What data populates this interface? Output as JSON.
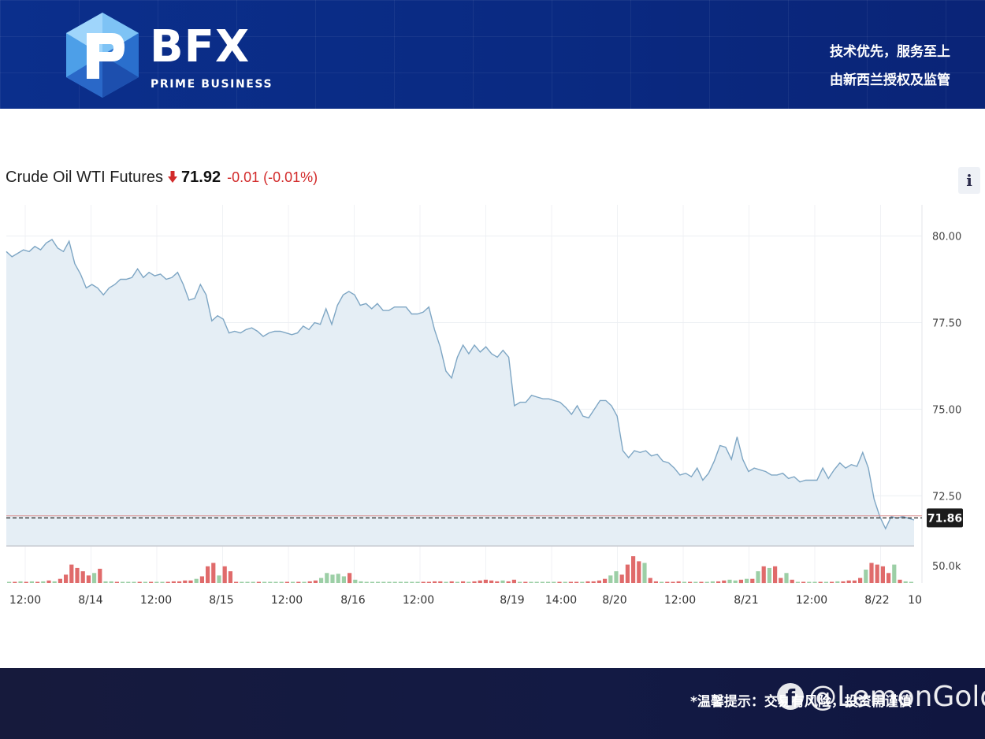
{
  "header": {
    "brand": "BFX",
    "brand_tagline": "PRIME BUSINESS",
    "slogan_line1": "技术优先，服务至上",
    "slogan_line2": "由新西兰授权及监管"
  },
  "quote": {
    "symbol_name": "Crude Oil WTI Futures",
    "direction_icon": "down-arrow-icon",
    "price": "71.92",
    "change": "-0.01 (-0.01%)",
    "change_color": "#d22a2a",
    "info_label": "i"
  },
  "chart_data": {
    "type": "area",
    "title": "",
    "xlabel": "",
    "ylabel": "",
    "ylim": [
      71.05,
      80.9
    ],
    "y_ticks": [
      "80.00",
      "77.50",
      "75.00",
      "72.50"
    ],
    "volume_tick": "50.0k",
    "last_value_label": "71.86",
    "last_value": 71.86,
    "reference_value": 71.92,
    "x_tick_labels": [
      "12:00",
      "8/14",
      "12:00",
      "8/15",
      "12:00",
      "8/16",
      "12:00",
      "8/19",
      "14:00",
      "8/20",
      "12:00",
      "8/21",
      "12:00",
      "8/22",
      "10"
    ],
    "grid": true,
    "line_color": "#7ea6c4",
    "area_color": "#e5eef5",
    "price_series": [
      79.55,
      79.4,
      79.5,
      79.6,
      79.55,
      79.7,
      79.6,
      79.8,
      79.9,
      79.65,
      79.55,
      79.85,
      79.2,
      78.9,
      78.5,
      78.6,
      78.5,
      78.3,
      78.5,
      78.6,
      78.75,
      78.75,
      78.8,
      79.05,
      78.8,
      78.95,
      78.85,
      78.9,
      78.75,
      78.8,
      78.95,
      78.6,
      78.15,
      78.2,
      78.6,
      78.3,
      77.55,
      77.7,
      77.6,
      77.2,
      77.25,
      77.2,
      77.3,
      77.35,
      77.25,
      77.1,
      77.2,
      77.25,
      77.25,
      77.2,
      77.15,
      77.2,
      77.4,
      77.3,
      77.5,
      77.45,
      77.9,
      77.45,
      78.0,
      78.3,
      78.4,
      78.3,
      78.0,
      78.05,
      77.9,
      78.05,
      77.85,
      77.85,
      77.95,
      77.95,
      77.95,
      77.75,
      77.75,
      77.8,
      77.95,
      77.3,
      76.8,
      76.1,
      75.9,
      76.5,
      76.85,
      76.6,
      76.85,
      76.65,
      76.8,
      76.6,
      76.5,
      76.7,
      76.5,
      75.1,
      75.2,
      75.2,
      75.4,
      75.35,
      75.3,
      75.3,
      75.25,
      75.2,
      75.05,
      74.85,
      75.1,
      74.8,
      74.75,
      75.0,
      75.25,
      75.25,
      75.1,
      74.8,
      73.8,
      73.6,
      73.8,
      73.75,
      73.8,
      73.65,
      73.7,
      73.5,
      73.45,
      73.3,
      73.1,
      73.15,
      73.05,
      73.3,
      72.95,
      73.15,
      73.5,
      73.95,
      73.9,
      73.55,
      74.2,
      73.55,
      73.2,
      73.3,
      73.25,
      73.2,
      73.1,
      73.1,
      73.15,
      73.0,
      73.05,
      72.9,
      72.95,
      72.95,
      72.95,
      73.3,
      73.0,
      73.25,
      73.45,
      73.3,
      73.4,
      73.35,
      73.75,
      73.3,
      72.4,
      71.9,
      71.55,
      71.9,
      71.85,
      71.9,
      71.85,
      71.8
    ],
    "volume_series": [
      {
        "v": 1,
        "c": "g"
      },
      {
        "v": 1,
        "c": "r"
      },
      {
        "v": 2,
        "c": "g"
      },
      {
        "v": 1,
        "c": "r"
      },
      {
        "v": 2,
        "c": "g"
      },
      {
        "v": 1,
        "c": "r"
      },
      {
        "v": 2,
        "c": "g"
      },
      {
        "v": 3,
        "c": "r"
      },
      {
        "v": 2,
        "c": "g"
      },
      {
        "v": 5,
        "c": "r"
      },
      {
        "v": 10,
        "c": "r"
      },
      {
        "v": 22,
        "c": "r"
      },
      {
        "v": 18,
        "c": "r"
      },
      {
        "v": 14,
        "c": "r"
      },
      {
        "v": 9,
        "c": "r"
      },
      {
        "v": 12,
        "c": "g"
      },
      {
        "v": 17,
        "c": "r"
      },
      {
        "v": 2,
        "c": "g"
      },
      {
        "v": 2,
        "c": "g"
      },
      {
        "v": 1,
        "c": "r"
      },
      {
        "v": 0,
        "c": "g"
      },
      {
        "v": 0,
        "c": "g"
      },
      {
        "v": 0,
        "c": "g"
      },
      {
        "v": 1,
        "c": "r"
      },
      {
        "v": 1,
        "c": "g"
      },
      {
        "v": 1,
        "c": "r"
      },
      {
        "v": 0,
        "c": "g"
      },
      {
        "v": 1,
        "c": "g"
      },
      {
        "v": 1,
        "c": "r"
      },
      {
        "v": 2,
        "c": "r"
      },
      {
        "v": 2,
        "c": "r"
      },
      {
        "v": 3,
        "c": "r"
      },
      {
        "v": 3,
        "c": "r"
      },
      {
        "v": 5,
        "c": "g"
      },
      {
        "v": 8,
        "c": "r"
      },
      {
        "v": 20,
        "c": "r"
      },
      {
        "v": 24,
        "c": "r"
      },
      {
        "v": 9,
        "c": "g"
      },
      {
        "v": 20,
        "c": "r"
      },
      {
        "v": 14,
        "c": "r"
      },
      {
        "v": 1,
        "c": "r"
      },
      {
        "v": 0,
        "c": "g"
      },
      {
        "v": 0,
        "c": "g"
      },
      {
        "v": 0,
        "c": "g"
      },
      {
        "v": 1,
        "c": "r"
      },
      {
        "v": 0,
        "c": "g"
      },
      {
        "v": 0,
        "c": "g"
      },
      {
        "v": 0,
        "c": "g"
      },
      {
        "v": 0,
        "c": "g"
      },
      {
        "v": 1,
        "c": "r"
      },
      {
        "v": 1,
        "c": "g"
      },
      {
        "v": 1,
        "c": "r"
      },
      {
        "v": 1,
        "c": "g"
      },
      {
        "v": 2,
        "c": "r"
      },
      {
        "v": 3,
        "c": "r"
      },
      {
        "v": 6,
        "c": "g"
      },
      {
        "v": 12,
        "c": "g"
      },
      {
        "v": 10,
        "c": "g"
      },
      {
        "v": 11,
        "c": "g"
      },
      {
        "v": 8,
        "c": "g"
      },
      {
        "v": 12,
        "c": "r"
      },
      {
        "v": 4,
        "c": "g"
      },
      {
        "v": 2,
        "c": "g"
      },
      {
        "v": 1,
        "c": "g"
      },
      {
        "v": 0,
        "c": "g"
      },
      {
        "v": 0,
        "c": "g"
      },
      {
        "v": 0,
        "c": "g"
      },
      {
        "v": 0,
        "c": "g"
      },
      {
        "v": 0,
        "c": "g"
      },
      {
        "v": 0,
        "c": "g"
      },
      {
        "v": 0,
        "c": "g"
      },
      {
        "v": 0,
        "c": "g"
      },
      {
        "v": 0,
        "c": "g"
      },
      {
        "v": 1,
        "c": "r"
      },
      {
        "v": 1,
        "c": "r"
      },
      {
        "v": 2,
        "c": "r"
      },
      {
        "v": 2,
        "c": "r"
      },
      {
        "v": 1,
        "c": "g"
      },
      {
        "v": 2,
        "c": "r"
      },
      {
        "v": 1,
        "c": "g"
      },
      {
        "v": 2,
        "c": "r"
      },
      {
        "v": 1,
        "c": "g"
      },
      {
        "v": 2,
        "c": "r"
      },
      {
        "v": 3,
        "c": "r"
      },
      {
        "v": 4,
        "c": "r"
      },
      {
        "v": 3,
        "c": "r"
      },
      {
        "v": 2,
        "c": "r"
      },
      {
        "v": 3,
        "c": "g"
      },
      {
        "v": 2,
        "c": "r"
      },
      {
        "v": 4,
        "c": "r"
      },
      {
        "v": 1,
        "c": "g"
      },
      {
        "v": 1,
        "c": "r"
      },
      {
        "v": 0,
        "c": "g"
      },
      {
        "v": 0,
        "c": "g"
      },
      {
        "v": 0,
        "c": "g"
      },
      {
        "v": 0,
        "c": "g"
      },
      {
        "v": 0,
        "c": "g"
      },
      {
        "v": 1,
        "c": "r"
      },
      {
        "v": 0,
        "c": "g"
      },
      {
        "v": 1,
        "c": "r"
      },
      {
        "v": 1,
        "c": "r"
      },
      {
        "v": 1,
        "c": "g"
      },
      {
        "v": 2,
        "c": "r"
      },
      {
        "v": 2,
        "c": "r"
      },
      {
        "v": 3,
        "c": "r"
      },
      {
        "v": 5,
        "c": "r"
      },
      {
        "v": 9,
        "c": "g"
      },
      {
        "v": 14,
        "c": "g"
      },
      {
        "v": 10,
        "c": "r"
      },
      {
        "v": 22,
        "c": "r"
      },
      {
        "v": 32,
        "c": "r"
      },
      {
        "v": 26,
        "c": "r"
      },
      {
        "v": 24,
        "c": "g"
      },
      {
        "v": 6,
        "c": "r"
      },
      {
        "v": 2,
        "c": "r"
      },
      {
        "v": 1,
        "c": "g"
      },
      {
        "v": 1,
        "c": "r"
      },
      {
        "v": 1,
        "c": "r"
      },
      {
        "v": 2,
        "c": "r"
      },
      {
        "v": 1,
        "c": "g"
      },
      {
        "v": 1,
        "c": "r"
      },
      {
        "v": 1,
        "c": "g"
      },
      {
        "v": 1,
        "c": "r"
      },
      {
        "v": 1,
        "c": "g"
      },
      {
        "v": 2,
        "c": "g"
      },
      {
        "v": 2,
        "c": "r"
      },
      {
        "v": 3,
        "c": "r"
      },
      {
        "v": 4,
        "c": "g"
      },
      {
        "v": 3,
        "c": "g"
      },
      {
        "v": 4,
        "c": "r"
      },
      {
        "v": 5,
        "c": "g"
      },
      {
        "v": 5,
        "c": "r"
      },
      {
        "v": 14,
        "c": "g"
      },
      {
        "v": 20,
        "c": "r"
      },
      {
        "v": 18,
        "c": "g"
      },
      {
        "v": 20,
        "c": "r"
      },
      {
        "v": 6,
        "c": "r"
      },
      {
        "v": 12,
        "c": "g"
      },
      {
        "v": 4,
        "c": "r"
      },
      {
        "v": 1,
        "c": "g"
      },
      {
        "v": 1,
        "c": "r"
      },
      {
        "v": 0,
        "c": "g"
      },
      {
        "v": 0,
        "c": "g"
      },
      {
        "v": 1,
        "c": "r"
      },
      {
        "v": 1,
        "c": "g"
      },
      {
        "v": 1,
        "c": "r"
      },
      {
        "v": 2,
        "c": "g"
      },
      {
        "v": 2,
        "c": "r"
      },
      {
        "v": 3,
        "c": "r"
      },
      {
        "v": 3,
        "c": "r"
      },
      {
        "v": 6,
        "c": "r"
      },
      {
        "v": 16,
        "c": "g"
      },
      {
        "v": 24,
        "c": "r"
      },
      {
        "v": 22,
        "c": "r"
      },
      {
        "v": 20,
        "c": "r"
      },
      {
        "v": 12,
        "c": "r"
      },
      {
        "v": 22,
        "c": "g"
      },
      {
        "v": 4,
        "c": "r"
      },
      {
        "v": 2,
        "c": "g"
      },
      {
        "v": 1,
        "c": "g"
      }
    ],
    "volume_colors": {
      "r": "#e06b6b",
      "g": "#9ccfa6"
    }
  },
  "footer": {
    "disclaimer": "*温馨提示：交易有风险，投资需谨慎",
    "watermark": "@LemonGold",
    "watermark_icon": "facebook-icon"
  }
}
